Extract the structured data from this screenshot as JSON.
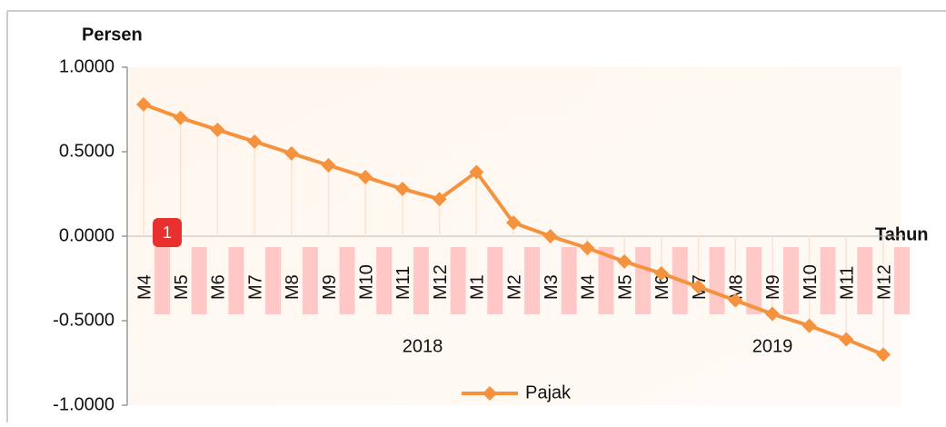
{
  "chart_data": {
    "type": "line",
    "y_axis_label": "Persen",
    "x_axis_label": "Tahun",
    "categories": [
      "M4",
      "M5",
      "M6",
      "M7",
      "M8",
      "M9",
      "M10",
      "M11",
      "M12",
      "M1",
      "M2",
      "M3",
      "M4",
      "M5",
      "M6",
      "M7",
      "M8",
      "M9",
      "M10",
      "M11",
      "M12"
    ],
    "year_labels": [
      "2018",
      "2019"
    ],
    "series": [
      {
        "name": "Pajak",
        "color": "#f5923e",
        "values": [
          0.78,
          0.7,
          0.63,
          0.56,
          0.49,
          0.42,
          0.35,
          0.28,
          0.22,
          0.38,
          0.08,
          0.0,
          -0.07,
          -0.15,
          -0.22,
          -0.3,
          -0.38,
          -0.46,
          -0.53,
          -0.61,
          -0.7
        ]
      }
    ],
    "ylim": [
      -1,
      1
    ],
    "yticks": [
      {
        "value": 1,
        "label": "1.0000"
      },
      {
        "value": 0.5,
        "label": "0.5000"
      },
      {
        "value": 0,
        "label": "0.0000"
      },
      {
        "value": -0.5,
        "label": "-0.5000"
      },
      {
        "value": -1,
        "label": "-1.0000"
      }
    ],
    "badge": "1"
  }
}
